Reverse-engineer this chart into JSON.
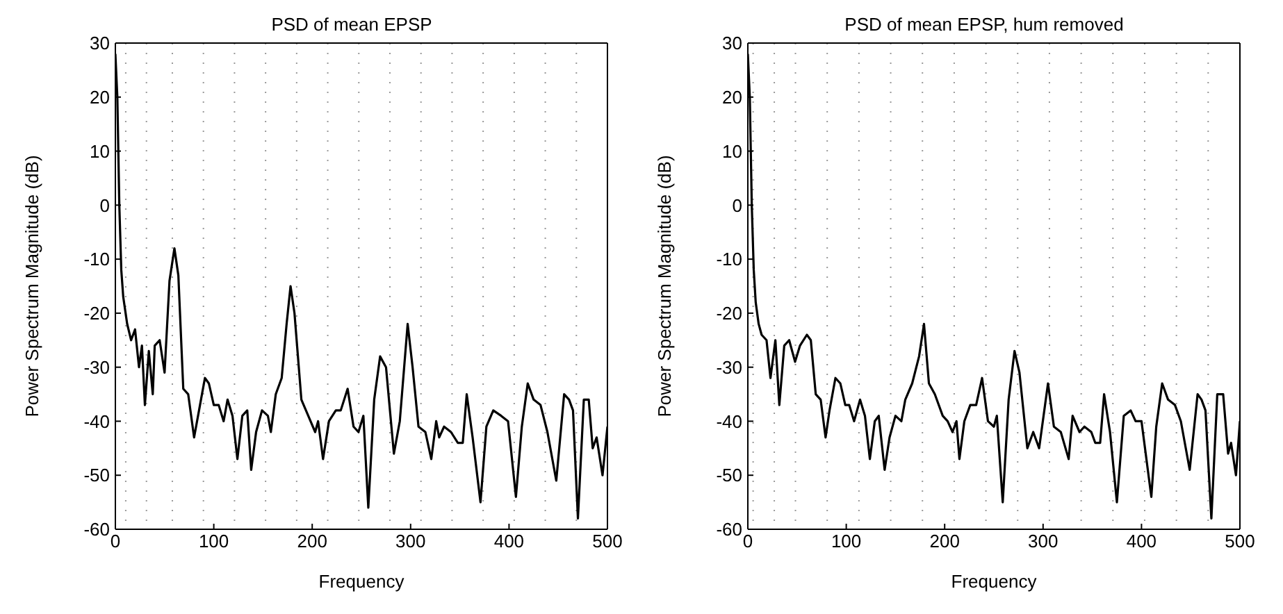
{
  "chart_data": [
    {
      "type": "line",
      "title": "PSD of mean EPSP",
      "xlabel": "Frequency",
      "ylabel": "Power Spectrum Magnitude (dB)",
      "color": "#000000",
      "grid": true,
      "xlim": [
        0,
        500
      ],
      "ylim": [
        -60,
        30
      ],
      "xticks": [
        0,
        100,
        200,
        300,
        400,
        500
      ],
      "yticks": [
        -60,
        -50,
        -40,
        -30,
        -20,
        -10,
        0,
        10,
        20,
        30
      ],
      "x": [
        0,
        2,
        4,
        6,
        8,
        12,
        16,
        20,
        24,
        27,
        30,
        34,
        38,
        40,
        45,
        50,
        55,
        60,
        64,
        69,
        74,
        80,
        86,
        91,
        95,
        100,
        105,
        110,
        114,
        119,
        124,
        129,
        134,
        138,
        143,
        149,
        155,
        158,
        163,
        169,
        174,
        178,
        182,
        189,
        196,
        203,
        206,
        211,
        217,
        224,
        229,
        236,
        242,
        247,
        252,
        257,
        263,
        269,
        275,
        283,
        289,
        297,
        302,
        308,
        315,
        321,
        326,
        329,
        334,
        341,
        348,
        353,
        357,
        363,
        371,
        377,
        384,
        392,
        399,
        407,
        413,
        419,
        425,
        432,
        439,
        448,
        456,
        461,
        465,
        470,
        476,
        481,
        485,
        489,
        495,
        500
      ],
      "values": [
        28,
        20,
        0,
        -12,
        -17,
        -22,
        -25,
        -23,
        -30,
        -26,
        -37,
        -27,
        -35,
        -26,
        -25,
        -31,
        -14,
        -8,
        -13,
        -34,
        -35,
        -43,
        -37,
        -32,
        -33,
        -37,
        -37,
        -40,
        -36,
        -39,
        -47,
        -39,
        -38,
        -49,
        -42,
        -38,
        -39,
        -42,
        -35,
        -32,
        -22,
        -15,
        -20,
        -36,
        -39,
        -42,
        -40,
        -47,
        -40,
        -38,
        -38,
        -34,
        -41,
        -42,
        -39,
        -56,
        -36,
        -28,
        -30,
        -46,
        -40,
        -22,
        -30,
        -41,
        -42,
        -47,
        -40,
        -43,
        -41,
        -42,
        -44,
        -44,
        -35,
        -43,
        -55,
        -41,
        -38,
        -39,
        -40,
        -54,
        -41,
        -33,
        -36,
        -37,
        -42,
        -51,
        -35,
        -36,
        -38,
        -58,
        -36,
        -36,
        -45,
        -43,
        -50,
        -41
      ]
    },
    {
      "type": "line",
      "title": "PSD of mean EPSP, hum removed",
      "xlabel": "Frequency",
      "ylabel": "Power Spectrum Magnitude (dB)",
      "color": "#000000",
      "grid": true,
      "xlim": [
        0,
        500
      ],
      "ylim": [
        -60,
        30
      ],
      "xticks": [
        0,
        100,
        200,
        300,
        400,
        500
      ],
      "yticks": [
        -60,
        -50,
        -40,
        -30,
        -20,
        -10,
        0,
        10,
        20,
        30
      ],
      "x": [
        0,
        2,
        4,
        6,
        8,
        11,
        14,
        19,
        23,
        28,
        32,
        37,
        42,
        48,
        53,
        60,
        64,
        69,
        74,
        79,
        83,
        89,
        94,
        99,
        103,
        108,
        114,
        119,
        124,
        129,
        133,
        139,
        144,
        150,
        156,
        160,
        167,
        174,
        179,
        184,
        190,
        198,
        203,
        208,
        212,
        215,
        220,
        226,
        232,
        238,
        244,
        250,
        253,
        259,
        265,
        271,
        276,
        284,
        290,
        296,
        305,
        311,
        318,
        326,
        330,
        337,
        342,
        349,
        353,
        358,
        362,
        368,
        375,
        382,
        389,
        394,
        400,
        410,
        415,
        421,
        427,
        434,
        440,
        449,
        457,
        461,
        465,
        471,
        477,
        483,
        488,
        491,
        496,
        500
      ],
      "values": [
        28,
        20,
        0,
        -12,
        -18,
        -22,
        -24,
        -25,
        -32,
        -25,
        -37,
        -26,
        -25,
        -29,
        -26,
        -24,
        -25,
        -35,
        -36,
        -43,
        -38,
        -32,
        -33,
        -37,
        -37,
        -40,
        -36,
        -39,
        -47,
        -40,
        -39,
        -49,
        -43,
        -39,
        -40,
        -36,
        -33,
        -28,
        -22,
        -33,
        -35,
        -39,
        -40,
        -42,
        -40,
        -47,
        -40,
        -37,
        -37,
        -32,
        -40,
        -41,
        -39,
        -55,
        -36,
        -27,
        -31,
        -45,
        -42,
        -45,
        -33,
        -41,
        -42,
        -47,
        -39,
        -42,
        -41,
        -42,
        -44,
        -44,
        -35,
        -42,
        -55,
        -39,
        -38,
        -40,
        -40,
        -54,
        -41,
        -33,
        -36,
        -37,
        -40,
        -49,
        -35,
        -36,
        -38,
        -58,
        -35,
        -35,
        -46,
        -44,
        -50,
        -40
      ]
    }
  ]
}
